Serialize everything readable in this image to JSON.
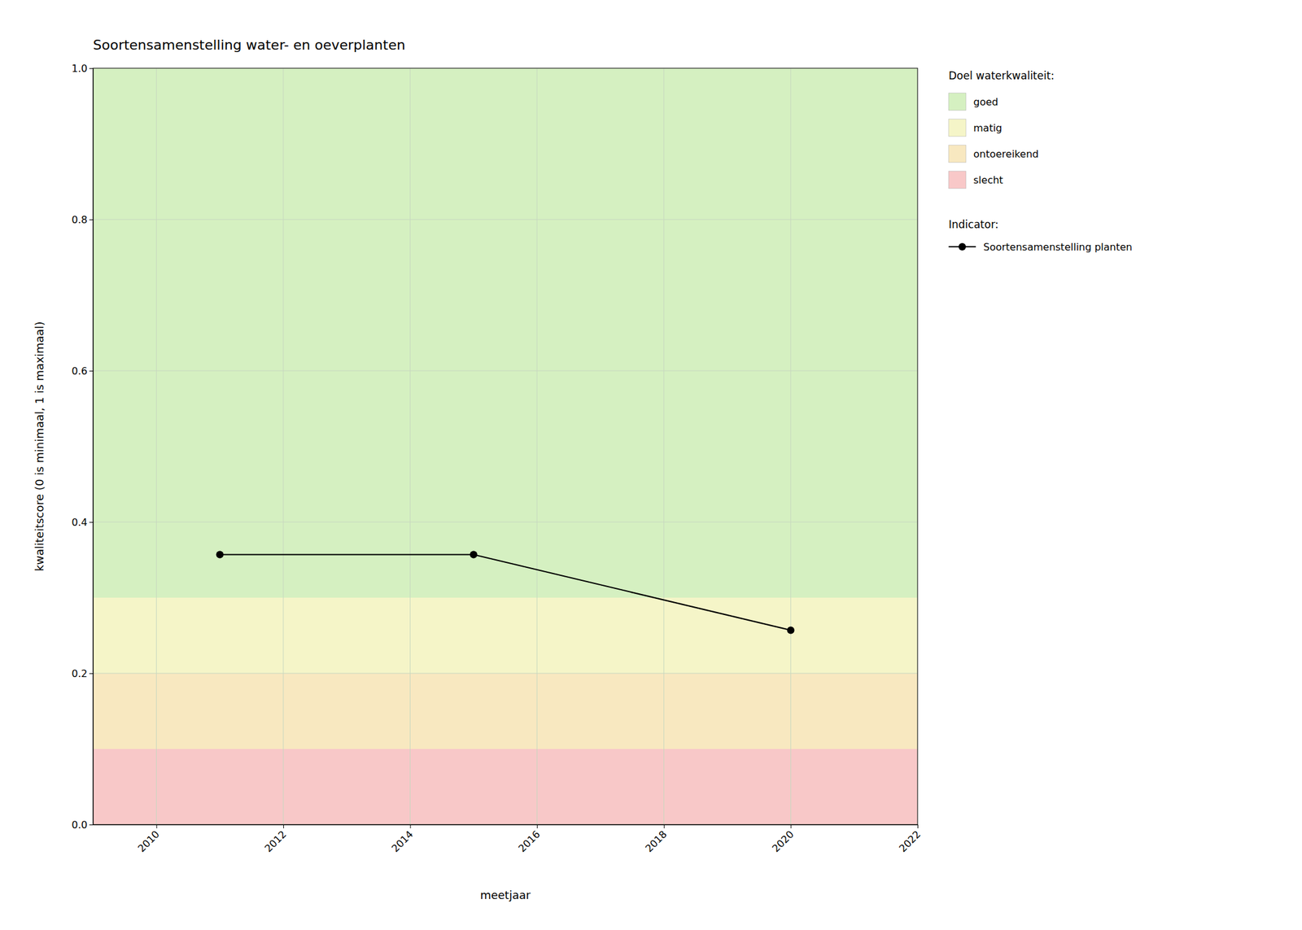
{
  "chart_data": {
    "type": "line",
    "title": "Soortensamenstelling water- en oeverplanten",
    "xlabel": "meetjaar",
    "ylabel": "kwaliteitscore (0 is minimaal, 1 is maximaal)",
    "x": [
      2011,
      2015,
      2020
    ],
    "series": [
      {
        "name": "Soortensamenstelling planten",
        "color": "#000000",
        "marker": "circle",
        "values": [
          0.357,
          0.357,
          0.257
        ]
      }
    ],
    "xlim": [
      2009,
      2022
    ],
    "ylim": [
      0.0,
      1.0
    ],
    "xticks": [
      2010,
      2012,
      2014,
      2016,
      2018,
      2020,
      2022
    ],
    "yticks": [
      {
        "value": 0.0,
        "label": "0.0"
      },
      0.2,
      0.4,
      0.6,
      0.8,
      {
        "value": 1.0,
        "label": "1.0"
      }
    ],
    "grid": true,
    "legend": "right",
    "legend_title": "Indicator:",
    "zones_title": "Doel waterkwaliteit:",
    "zones": [
      {
        "label": "goed",
        "ymin": 0.3,
        "ymax": 1.0,
        "color": "#d5f0c1"
      },
      {
        "label": "matig",
        "ymin": 0.2,
        "ymax": 0.3,
        "color": "#f5f5c8"
      },
      {
        "label": "ontoereikend",
        "ymin": 0.1,
        "ymax": 0.2,
        "color": "#f8e8c0"
      },
      {
        "label": "slecht",
        "ymin": 0.0,
        "ymax": 0.1,
        "color": "#f8c8c8"
      }
    ]
  }
}
